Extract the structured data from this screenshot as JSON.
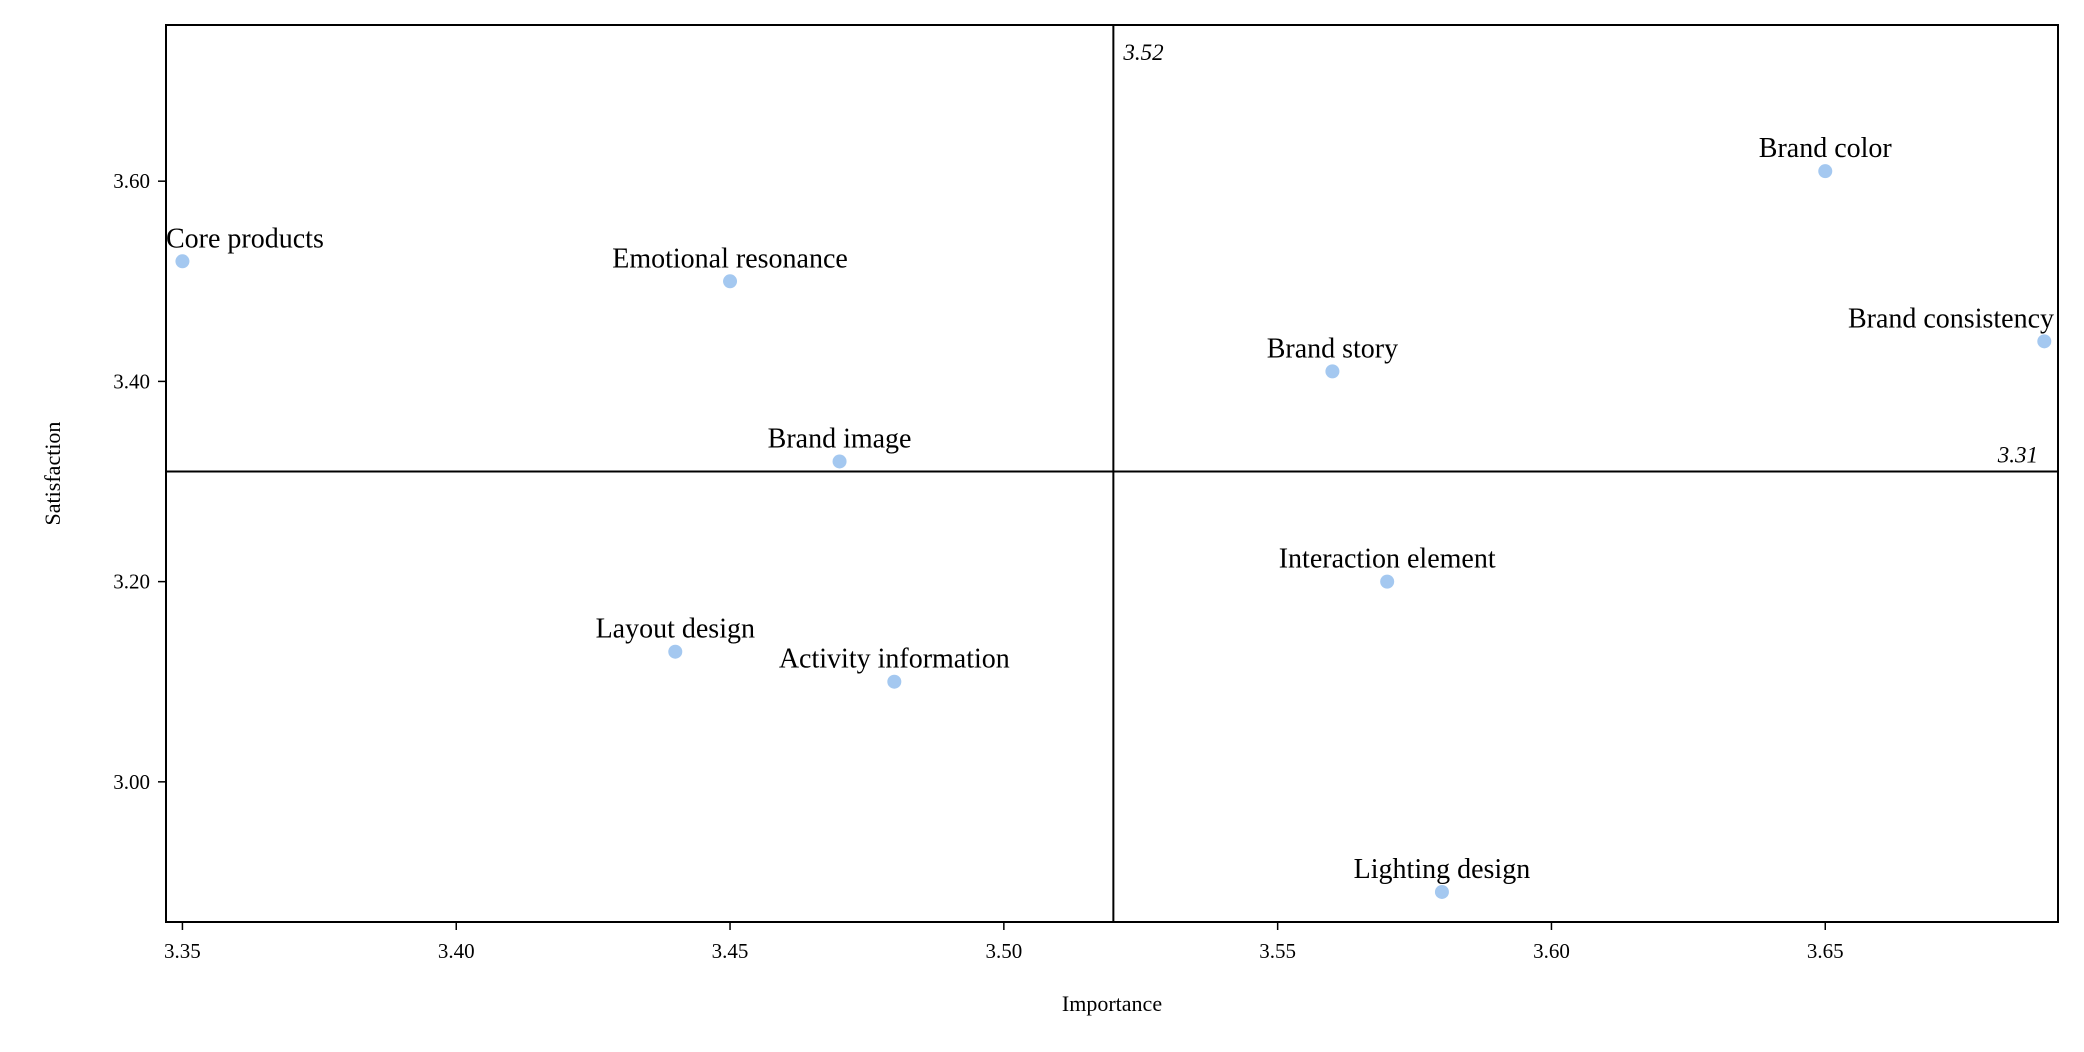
{
  "chart_data": {
    "type": "scatter",
    "title": "",
    "xlabel": "Importance",
    "ylabel": "Satisfaction",
    "xlim": [
      3.347,
      3.6925
    ],
    "ylim": [
      2.86,
      3.756
    ],
    "x_ticks": [
      "3.35",
      "3.40",
      "3.45",
      "3.50",
      "3.55",
      "3.60",
      "3.65"
    ],
    "x_tick_values": [
      3.35,
      3.4,
      3.45,
      3.5,
      3.55,
      3.6,
      3.65
    ],
    "y_ticks": [
      "3.60",
      "3.40",
      "3.20",
      "3.00"
    ],
    "y_tick_values": [
      3.6,
      3.4,
      3.2,
      3.0
    ],
    "grid": false,
    "point_color": "#a4c8f0",
    "reference_lines": {
      "vertical": {
        "value": 3.52,
        "label": "3.52"
      },
      "horizontal": {
        "value": 3.31,
        "label": "3.31"
      }
    },
    "points": [
      {
        "label": "Core products",
        "x": 3.35,
        "y": 3.52
      },
      {
        "label": "Emotional resonance",
        "x": 3.45,
        "y": 3.5
      },
      {
        "label": "Brand image",
        "x": 3.47,
        "y": 3.32
      },
      {
        "label": "Layout design",
        "x": 3.44,
        "y": 3.13
      },
      {
        "label": "Activity information",
        "x": 3.48,
        "y": 3.1
      },
      {
        "label": "Brand color",
        "x": 3.65,
        "y": 3.61
      },
      {
        "label": "Brand story",
        "x": 3.56,
        "y": 3.41
      },
      {
        "label": "Brand consistency",
        "x": 3.69,
        "y": 3.44
      },
      {
        "label": "Interaction element",
        "x": 3.57,
        "y": 3.2
      },
      {
        "label": "Lighting design",
        "x": 3.58,
        "y": 2.89
      }
    ]
  }
}
